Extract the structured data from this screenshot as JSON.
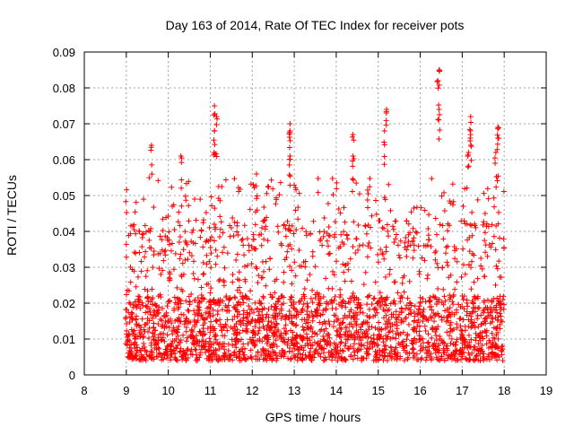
{
  "chart_data": {
    "type": "scatter",
    "title": "Day 163 of 2014, Rate Of TEC Index for receiver pots",
    "xlabel": "GPS time / hours",
    "ylabel": "ROTI / TECUs",
    "xlim": [
      8,
      19
    ],
    "ylim": [
      0,
      0.09
    ],
    "x_ticks": [
      8,
      9,
      10,
      11,
      12,
      13,
      14,
      15,
      16,
      17,
      18,
      19
    ],
    "y_ticks": [
      0,
      0.01,
      0.02,
      0.03,
      0.04,
      0.05,
      0.06,
      0.07,
      0.08,
      0.09
    ],
    "x_tick_labels": [
      "8",
      "9",
      "10",
      "11",
      "12",
      "13",
      "14",
      "15",
      "16",
      "17",
      "18",
      "19"
    ],
    "y_tick_labels": [
      "0",
      "0.01",
      "0.02",
      "0.03",
      "0.04",
      "0.05",
      "0.06",
      "0.07",
      "0.08",
      "0.09"
    ],
    "grid": true,
    "marker": "+",
    "marker_color": "#ff0000",
    "axis_color": "#000000",
    "grid_color": "#a0a0a0",
    "series": [
      {
        "name": "ROTI",
        "x_range": [
          8.98,
          18.0
        ],
        "typical_range": [
          0.004,
          0.035
        ],
        "spikes": [
          {
            "x": 9.6,
            "y": 0.064
          },
          {
            "x": 10.3,
            "y": 0.061
          },
          {
            "x": 11.1,
            "y": 0.075
          },
          {
            "x": 11.15,
            "y": 0.072
          },
          {
            "x": 11.1,
            "y": 0.068
          },
          {
            "x": 12.1,
            "y": 0.056
          },
          {
            "x": 12.9,
            "y": 0.07
          },
          {
            "x": 12.9,
            "y": 0.068
          },
          {
            "x": 12.9,
            "y": 0.061
          },
          {
            "x": 14.4,
            "y": 0.067
          },
          {
            "x": 14.4,
            "y": 0.061
          },
          {
            "x": 15.2,
            "y": 0.074
          },
          {
            "x": 15.15,
            "y": 0.068
          },
          {
            "x": 16.45,
            "y": 0.085
          },
          {
            "x": 16.42,
            "y": 0.082
          },
          {
            "x": 16.45,
            "y": 0.074
          },
          {
            "x": 17.2,
            "y": 0.072
          },
          {
            "x": 17.2,
            "y": 0.067
          },
          {
            "x": 17.15,
            "y": 0.062
          },
          {
            "x": 17.85,
            "y": 0.069
          },
          {
            "x": 17.85,
            "y": 0.066
          },
          {
            "x": 17.8,
            "y": 0.062
          }
        ]
      }
    ]
  }
}
